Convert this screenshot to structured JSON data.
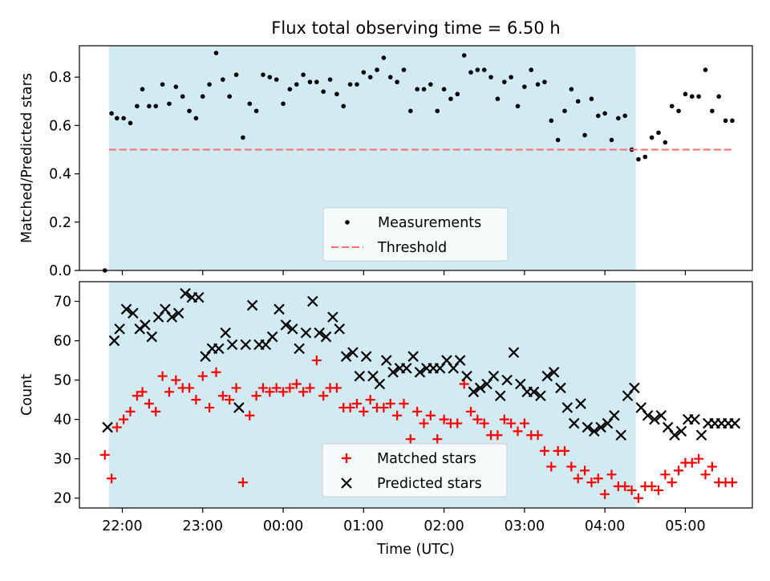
{
  "chart_data": [
    {
      "type": "scatter",
      "title": "Flux total observing time = 6.50 h",
      "xlabel": "",
      "ylabel": "Matched/Predicted stars",
      "xlim": [
        "21:28",
        "05:50"
      ],
      "ylim": [
        0,
        0.93
      ],
      "yticks": [
        0.0,
        0.2,
        0.4,
        0.6,
        0.8
      ],
      "yticklabels": [
        "0.0",
        "0.2",
        "0.4",
        "0.6",
        "0.8"
      ],
      "observing_window": [
        "21:50",
        "04:23"
      ],
      "observing_window_color": "#add8e6",
      "legend": {
        "placement": "lower center",
        "entries": [
          "Measurements",
          "Threshold"
        ]
      },
      "series": [
        {
          "name": "Measurements",
          "marker": "dot",
          "color": "#000000",
          "x": [
            "21:47",
            "21:52",
            "21:56",
            "22:01",
            "22:06",
            "22:11",
            "22:15",
            "22:20",
            "22:25",
            "22:30",
            "22:35",
            "22:40",
            "22:45",
            "22:50",
            "22:55",
            "23:00",
            "23:05",
            "23:10",
            "23:15",
            "23:20",
            "23:25",
            "23:30",
            "23:35",
            "23:40",
            "23:45",
            "23:50",
            "23:55",
            "00:00",
            "00:05",
            "00:10",
            "00:15",
            "00:20",
            "00:25",
            "00:30",
            "00:35",
            "00:40",
            "00:45",
            "00:50",
            "00:55",
            "01:00",
            "01:05",
            "01:10",
            "01:15",
            "01:20",
            "01:25",
            "01:30",
            "01:35",
            "01:40",
            "01:45",
            "01:50",
            "01:55",
            "02:00",
            "02:05",
            "02:10",
            "02:15",
            "02:20",
            "02:25",
            "02:30",
            "02:35",
            "02:40",
            "02:45",
            "02:50",
            "02:55",
            "03:00",
            "03:05",
            "03:10",
            "03:15",
            "03:20",
            "03:25",
            "03:30",
            "03:35",
            "03:40",
            "03:45",
            "03:50",
            "03:55",
            "04:00",
            "04:05",
            "04:10",
            "04:15",
            "04:20",
            "04:25",
            "04:30",
            "04:35",
            "04:40",
            "04:45",
            "04:50",
            "04:55",
            "05:00",
            "05:05",
            "05:10",
            "05:15",
            "05:20",
            "05:25",
            "05:30",
            "05:35"
          ],
          "values": [
            0.0,
            0.65,
            0.63,
            0.63,
            0.61,
            0.68,
            0.75,
            0.68,
            0.68,
            0.77,
            0.69,
            0.76,
            0.72,
            0.66,
            0.63,
            0.72,
            0.77,
            0.9,
            0.79,
            0.72,
            0.81,
            0.55,
            0.69,
            0.66,
            0.81,
            0.8,
            0.79,
            0.69,
            0.75,
            0.77,
            0.81,
            0.78,
            0.78,
            0.74,
            0.79,
            0.73,
            0.68,
            0.77,
            0.77,
            0.82,
            0.8,
            0.83,
            0.88,
            0.8,
            0.78,
            0.83,
            0.66,
            0.75,
            0.75,
            0.77,
            0.66,
            0.75,
            0.71,
            0.73,
            0.89,
            0.82,
            0.83,
            0.83,
            0.8,
            0.71,
            0.78,
            0.8,
            0.68,
            0.76,
            0.83,
            0.77,
            0.78,
            0.62,
            0.54,
            0.66,
            0.75,
            0.7,
            0.56,
            0.71,
            0.64,
            0.65,
            0.54,
            0.63,
            0.64,
            0.5,
            0.46,
            0.47,
            0.55,
            0.57,
            0.53,
            0.68,
            0.66,
            0.73,
            0.72,
            0.72,
            0.83,
            0.66,
            0.72,
            0.62,
            0.62
          ]
        },
        {
          "name": "Threshold",
          "line": "dashed",
          "color": "#ff6b6b",
          "x": [
            "21:50",
            "05:35"
          ],
          "values": [
            0.5,
            0.5
          ]
        }
      ]
    },
    {
      "type": "scatter",
      "title": "",
      "xlabel": "Time (UTC)",
      "ylabel": "Count",
      "xlim": [
        "21:28",
        "05:50"
      ],
      "ylim": [
        17.5,
        75
      ],
      "yticks": [
        20,
        30,
        40,
        50,
        60,
        70
      ],
      "yticklabels": [
        "20",
        "30",
        "40",
        "50",
        "60",
        "70"
      ],
      "xticks": [
        "22:00",
        "23:00",
        "00:00",
        "01:00",
        "02:00",
        "03:00",
        "04:00",
        "05:00"
      ],
      "xticklabels": [
        "22:00",
        "23:00",
        "00:00",
        "01:00",
        "02:00",
        "03:00",
        "04:00",
        "05:00"
      ],
      "observing_window": [
        "21:50",
        "04:23"
      ],
      "observing_window_color": "#add8e6",
      "legend": {
        "placement": "lower center",
        "entries": [
          "Matched stars",
          "Predicted stars"
        ]
      },
      "series": [
        {
          "name": "Matched stars",
          "marker": "plus",
          "color": "#ff0000",
          "x": [
            "21:47",
            "21:52",
            "21:56",
            "22:01",
            "22:06",
            "22:11",
            "22:15",
            "22:20",
            "22:25",
            "22:30",
            "22:35",
            "22:40",
            "22:45",
            "22:50",
            "22:55",
            "23:00",
            "23:05",
            "23:10",
            "23:15",
            "23:20",
            "23:25",
            "23:30",
            "23:35",
            "23:40",
            "23:45",
            "23:50",
            "23:55",
            "00:00",
            "00:05",
            "00:10",
            "00:15",
            "00:20",
            "00:25",
            "00:30",
            "00:35",
            "00:40",
            "00:45",
            "00:50",
            "00:55",
            "01:00",
            "01:05",
            "01:10",
            "01:15",
            "01:20",
            "01:25",
            "01:30",
            "01:35",
            "01:40",
            "01:45",
            "01:50",
            "01:55",
            "02:00",
            "02:05",
            "02:10",
            "02:15",
            "02:20",
            "02:25",
            "02:30",
            "02:35",
            "02:40",
            "02:45",
            "02:50",
            "02:55",
            "03:00",
            "03:05",
            "03:10",
            "03:15",
            "03:20",
            "03:25",
            "03:30",
            "03:35",
            "03:40",
            "03:45",
            "03:50",
            "03:55",
            "04:00",
            "04:05",
            "04:10",
            "04:15",
            "04:20",
            "04:25",
            "04:30",
            "04:35",
            "04:40",
            "04:45",
            "04:50",
            "04:55",
            "05:00",
            "05:05",
            "05:10",
            "05:15",
            "05:20",
            "05:25",
            "05:30",
            "05:35"
          ],
          "values": [
            31,
            25,
            38,
            40,
            42,
            46,
            47,
            44,
            42,
            51,
            47,
            50,
            48,
            48,
            45,
            51,
            43,
            52,
            46,
            45,
            48,
            24,
            41,
            46,
            48,
            47,
            48,
            47,
            48,
            49,
            47,
            48,
            55,
            46,
            48,
            48,
            43,
            43,
            44,
            42,
            45,
            43,
            43,
            44,
            41,
            44,
            35,
            42,
            39,
            41,
            35,
            40,
            39,
            39,
            49,
            42,
            40,
            39,
            36,
            36,
            40,
            39,
            37,
            39,
            36,
            36,
            32,
            28,
            32,
            32,
            28,
            25,
            27,
            24,
            25,
            21,
            26,
            23,
            23,
            22,
            20,
            23,
            23,
            22,
            26,
            24,
            27,
            29,
            29,
            30,
            26,
            28,
            24,
            24,
            24
          ]
        },
        {
          "name": "Predicted stars",
          "marker": "x",
          "color": "#000000",
          "x": [
            "21:49",
            "21:54",
            "21:58",
            "22:03",
            "22:08",
            "22:13",
            "22:17",
            "22:22",
            "22:27",
            "22:32",
            "22:37",
            "22:42",
            "22:47",
            "22:52",
            "22:57",
            "23:02",
            "23:07",
            "23:12",
            "23:17",
            "23:22",
            "23:27",
            "23:32",
            "23:37",
            "23:42",
            "23:47",
            "23:52",
            "23:57",
            "00:02",
            "00:07",
            "00:12",
            "00:17",
            "00:22",
            "00:27",
            "00:32",
            "00:37",
            "00:42",
            "00:47",
            "00:52",
            "00:57",
            "01:02",
            "01:07",
            "01:12",
            "01:17",
            "01:22",
            "01:27",
            "01:32",
            "01:37",
            "01:42",
            "01:47",
            "01:52",
            "01:57",
            "02:02",
            "02:07",
            "02:12",
            "02:17",
            "02:22",
            "02:27",
            "02:32",
            "02:37",
            "02:42",
            "02:47",
            "02:52",
            "02:57",
            "03:02",
            "03:07",
            "03:12",
            "03:17",
            "03:22",
            "03:27",
            "03:32",
            "03:37",
            "03:42",
            "03:47",
            "03:52",
            "03:57",
            "04:02",
            "04:07",
            "04:12",
            "04:17",
            "04:22",
            "04:27",
            "04:32",
            "04:37",
            "04:42",
            "04:47",
            "04:52",
            "04:57",
            "05:02",
            "05:07",
            "05:12",
            "05:17",
            "05:22",
            "05:27",
            "05:32",
            "05:37"
          ],
          "values": [
            38,
            60,
            63,
            68,
            67,
            63,
            64,
            61,
            66,
            68,
            66,
            67,
            72,
            71,
            71,
            56,
            58,
            58,
            62,
            59,
            43,
            59,
            69,
            59,
            59,
            61,
            68,
            64,
            63,
            58,
            62,
            70,
            62,
            61,
            66,
            63,
            56,
            57,
            51,
            56,
            51,
            49,
            55,
            52,
            53,
            53,
            56,
            52,
            53,
            53,
            53,
            55,
            53,
            55,
            51,
            47,
            48,
            49,
            51,
            46,
            50,
            57,
            49,
            47,
            47,
            46,
            51,
            52,
            48,
            43,
            39,
            44,
            38,
            37,
            38,
            39,
            41,
            36,
            46,
            48,
            43,
            41,
            40,
            41,
            38,
            36,
            37,
            40,
            40,
            36,
            39,
            39,
            39,
            39,
            39
          ]
        }
      ]
    }
  ]
}
